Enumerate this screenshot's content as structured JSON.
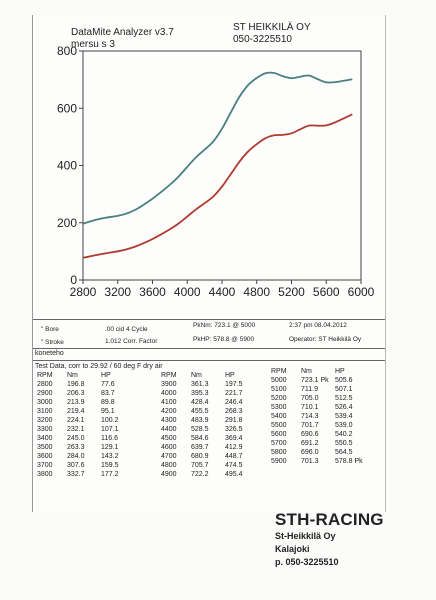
{
  "header": {
    "app": "DataMite Analyzer v3.7",
    "vehicle": "mersu s  3",
    "company": "ST HEIKKILÄ OY",
    "phone": "050-3225510"
  },
  "chart_data": {
    "type": "line",
    "title": "",
    "xlabel": "",
    "ylabel": "",
    "xlim": [
      2800,
      6000
    ],
    "ylim": [
      0,
      800
    ],
    "x_ticks": [
      "2800",
      "3200",
      "3600",
      "4000",
      "4400",
      "4800",
      "5200",
      "5600",
      "6000"
    ],
    "y_ticks": [
      "0",
      "200",
      "400",
      "600",
      "800"
    ],
    "grid": false,
    "legend": "none",
    "series": [
      {
        "color": "#4a7f7f",
        "x": [
          2800,
          2900,
          3000,
          3100,
          3200,
          3300,
          3400,
          3500,
          3600,
          3700,
          3800,
          3900,
          4000,
          4100,
          4200,
          4300,
          4400,
          4500,
          4600,
          4700,
          4800,
          4900,
          5000,
          5100,
          5200,
          5300,
          5400,
          5500,
          5600,
          5700,
          5800,
          5900
        ],
        "values": [
          196.8,
          206.3,
          213.9,
          219.4,
          224.1,
          232.1,
          245.0,
          263.3,
          284.0,
          307.6,
          332.7,
          361.3,
          395.3,
          428.4,
          455.5,
          483.9,
          528.5,
          584.6,
          639.7,
          680.9,
          705.7,
          722.2,
          723.1,
          711.9,
          705.0,
          710.1,
          714.3,
          701.7,
          690.6,
          691.2,
          696.0,
          701.3
        ]
      },
      {
        "color": "#b03a2e",
        "x": [
          2800,
          2900,
          3000,
          3100,
          3200,
          3300,
          3400,
          3500,
          3600,
          3700,
          3800,
          3900,
          4000,
          4100,
          4200,
          4300,
          4400,
          4500,
          4600,
          4700,
          4800,
          4900,
          5000,
          5100,
          5200,
          5300,
          5400,
          5500,
          5600,
          5700,
          5800,
          5900
        ],
        "values": [
          77.6,
          83.7,
          89.8,
          95.1,
          100.2,
          107.1,
          116.6,
          129.1,
          143.2,
          159.5,
          177.2,
          197.5,
          221.7,
          246.4,
          268.3,
          291.8,
          326.5,
          369.4,
          412.9,
          448.7,
          474.5,
          495.4,
          505.6,
          507.1,
          512.5,
          526.4,
          539.4,
          539.0,
          540.2,
          550.5,
          564.5,
          578.8
        ]
      }
    ]
  },
  "info": {
    "bore_label": "\" Bore",
    "stroke_label": "\" Stroke",
    "cid": ".00 cid  4 Cycle",
    "corr": "1.012 Corr. Factor",
    "pknm": "PkNm: 723.1 @  5000",
    "pkhp": "PkHP: 578.8 @  5900",
    "time": "2:37 pm  08.04.2012",
    "operator": "Operator: ST Heikkilä Oy"
  },
  "note": "konetehо",
  "table": {
    "title": "Test Data, corr to 29.92 / 60 deg F dry air",
    "headers": [
      "RPM",
      "Nm",
      "HP"
    ],
    "columns": [
      [
        [
          "2800",
          "196.8",
          "77.6"
        ],
        [
          "2900",
          "206.3",
          "83.7"
        ],
        [
          "3000",
          "213.9",
          "89.8"
        ],
        [
          "3100",
          "219.4",
          "95.1"
        ],
        [
          "3200",
          "224.1",
          "100.2"
        ],
        [
          "3300",
          "232.1",
          "107.1"
        ],
        [
          "3400",
          "245.0",
          "116.6"
        ],
        [
          "3500",
          "263.3",
          "129.1"
        ],
        [
          "3600",
          "284.0",
          "143.2"
        ],
        [
          "3700",
          "307.6",
          "159.5"
        ],
        [
          "3800",
          "332.7",
          "177.2"
        ]
      ],
      [
        [
          "3900",
          "361.3",
          "197.5"
        ],
        [
          "4000",
          "395.3",
          "221.7"
        ],
        [
          "4100",
          "428.4",
          "246.4"
        ],
        [
          "4200",
          "455.5",
          "268.3"
        ],
        [
          "4300",
          "483.9",
          "291.8"
        ],
        [
          "4400",
          "528.5",
          "326.5"
        ],
        [
          "4500",
          "584.6",
          "369.4"
        ],
        [
          "4600",
          "639.7",
          "412.9"
        ],
        [
          "4700",
          "680.9",
          "448.7"
        ],
        [
          "4800",
          "705.7",
          "474.5"
        ],
        [
          "4900",
          "722.2",
          "495.4"
        ]
      ],
      [
        [
          "5000",
          "723.1 Pk",
          "505.6"
        ],
        [
          "5100",
          "711.9",
          "507.1"
        ],
        [
          "5200",
          "705.0",
          "512.5"
        ],
        [
          "5300",
          "710.1",
          "526.4"
        ],
        [
          "5400",
          "714.3",
          "539.4"
        ],
        [
          "5500",
          "701.7",
          "539.0"
        ],
        [
          "5600",
          "690.6",
          "540.2"
        ],
        [
          "5700",
          "691.2",
          "550.5"
        ],
        [
          "5800",
          "696.0",
          "564.5"
        ],
        [
          "5900",
          "701.3",
          "578.8 Pk"
        ]
      ]
    ]
  },
  "footer": {
    "brand": "STH-RACING",
    "line1": "St-Heikkilä Oy",
    "line2": "Kalajoki",
    "line3": "p. 050-3225510"
  }
}
